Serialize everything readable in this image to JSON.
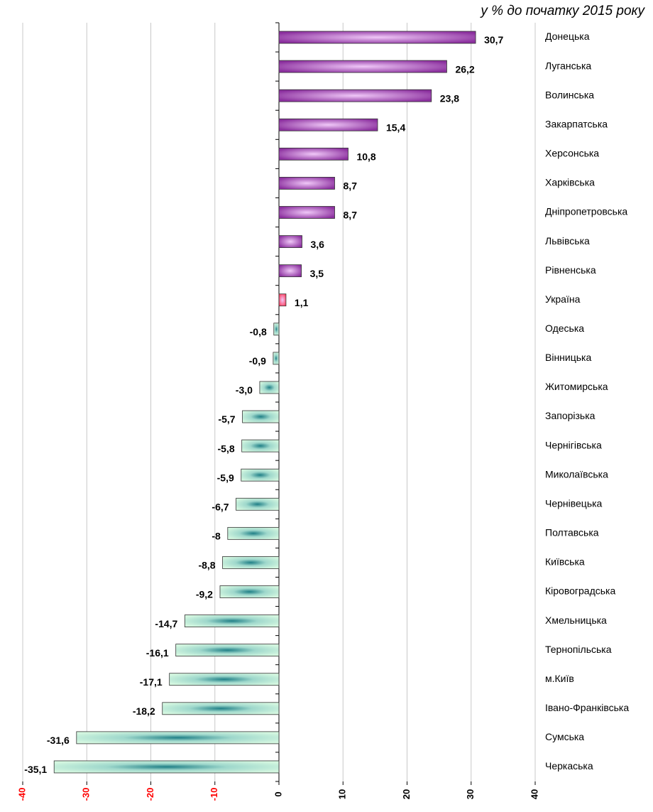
{
  "chart_data": {
    "type": "barh",
    "subtitle": "у % до початку 2015 року",
    "categories": [
      "Донецька",
      "Луганська",
      "Волинська",
      "Закарпатська",
      "Херсонська",
      "Харківська",
      "Дніпропетровська",
      "Львівська",
      "Рівненська",
      "Україна",
      "Одеська",
      "Вінницька",
      "Житомирська",
      "Запорізька",
      "Чернігівська",
      "Миколаївська",
      "Чернівецька",
      "Полтавська",
      "Київська",
      "Кіровоградська",
      "Хмельницька",
      "Тернопільська",
      "м.Київ",
      "Івано-Франківська",
      "Сумська",
      "Черкаська"
    ],
    "values": [
      30.7,
      26.2,
      23.8,
      15.4,
      10.8,
      8.7,
      8.7,
      3.6,
      3.5,
      1.1,
      -0.8,
      -0.9,
      -3.0,
      -5.7,
      -5.8,
      -5.9,
      -6.7,
      -8,
      -8.8,
      -9.2,
      -14.7,
      -16.1,
      -17.1,
      -18.2,
      -31.6,
      -35.1
    ],
    "value_labels": [
      "30,7",
      "26,2",
      "23,8",
      "15,4",
      "10,8",
      "8,7",
      "8,7",
      "3,6",
      "3,5",
      "1,1",
      "-0,8",
      "-0,9",
      "-3,0",
      "-5,7",
      "-5,8",
      "-5,9",
      "-6,7",
      "-8",
      "-8,8",
      "-9,2",
      "-14,7",
      "-16,1",
      "-17,1",
      "-18,2",
      "-31,6",
      "-35,1"
    ],
    "colors": [
      "#8b2f9e",
      "#8b2f9e",
      "#8b2f9e",
      "#8b2f9e",
      "#8b2f9e",
      "#8b2f9e",
      "#8b2f9e",
      "#8b2f9e",
      "#8b2f9e",
      "#ff4060",
      "#1f7f86",
      "#1f7f86",
      "#1f7f86",
      "#1f7f86",
      "#1f7f86",
      "#1f7f86",
      "#1f7f86",
      "#1f7f86",
      "#1f7f86",
      "#1f7f86",
      "#1f7f86",
      "#1f7f86",
      "#1f7f86",
      "#1f7f86",
      "#1f7f86",
      "#1f7f86"
    ],
    "xlim": [
      -40,
      40
    ],
    "xticks": [
      -40,
      -30,
      -20,
      -10,
      0,
      10,
      20,
      30,
      40
    ],
    "grid": true
  }
}
